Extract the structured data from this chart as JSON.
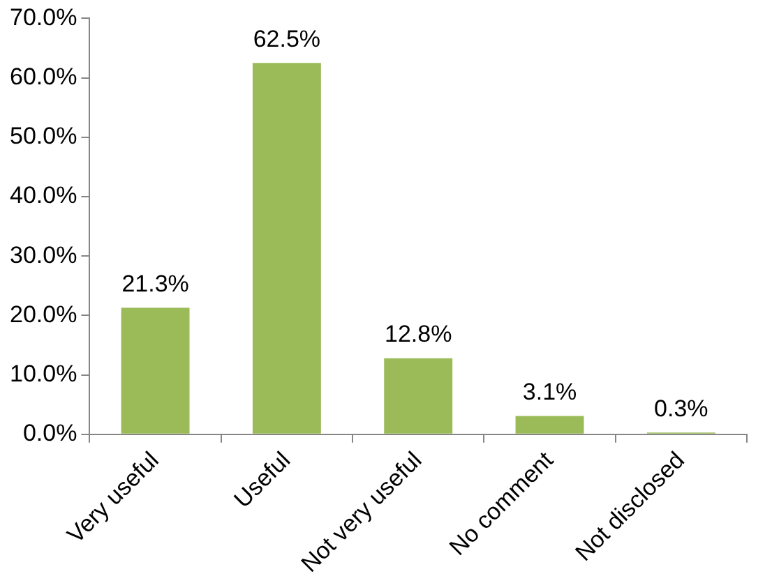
{
  "chart_data": {
    "type": "bar",
    "categories": [
      "Very useful",
      "Useful",
      "Not very useful",
      "No comment",
      "Not disclosed"
    ],
    "values": [
      21.3,
      62.5,
      12.8,
      3.1,
      0.3
    ],
    "value_labels": [
      "21.3%",
      "62.5%",
      "12.8%",
      "3.1%",
      "0.3%"
    ],
    "color": "#9bbb59",
    "ylim": [
      0,
      70
    ],
    "yticks": [
      {
        "value": 0,
        "label": "0.0%"
      },
      {
        "value": 10,
        "label": "10.0%"
      },
      {
        "value": 20,
        "label": "20.0%"
      },
      {
        "value": 30,
        "label": "30.0%"
      },
      {
        "value": 40,
        "label": "40.0%"
      },
      {
        "value": 50,
        "label": "50.0%"
      },
      {
        "value": 60,
        "label": "60.0%"
      },
      {
        "value": 70,
        "label": "70.0%"
      }
    ],
    "grid": false,
    "legend": false
  }
}
